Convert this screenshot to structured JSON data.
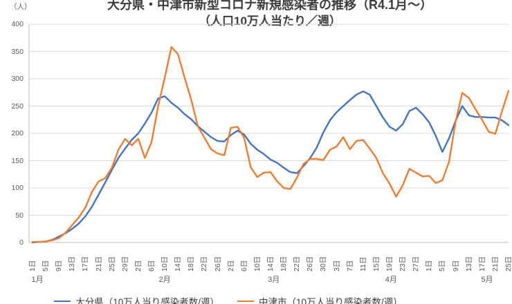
{
  "header": {
    "y_axis_unit": "（人）",
    "title_line1": "大分県・中津市新型コロナ新規感染者の推移（R4.1月～）",
    "title_line2": "（人口10万人当たり／週）"
  },
  "chart_data": {
    "type": "line",
    "title": "大分県・中津市新型コロナ新規感染者の推移（R4.1月～）",
    "subtitle": "（人口10万人当たり／週）",
    "ylabel": "（人）",
    "ylim": [
      0,
      400
    ],
    "y_ticks": [
      0,
      50,
      100,
      150,
      200,
      250,
      300,
      350,
      400
    ],
    "grid": "horizontal",
    "legend_position": "bottom",
    "x_start": "1月1日",
    "x_end": "5月25日",
    "sample_interval_days": 2,
    "x_tick_interval_days": 4,
    "x_tick_labels": [
      "1日",
      "5日",
      "9日",
      "13日",
      "17日",
      "21日",
      "25日",
      "29日",
      "2日",
      "6日",
      "10日",
      "14日",
      "18日",
      "22日",
      "26日",
      "2日",
      "6日",
      "10日",
      "14日",
      "18日",
      "22日",
      "26日",
      "30日",
      "3日",
      "7日",
      "11日",
      "15日",
      "19日",
      "23日",
      "27日",
      "1日",
      "5日",
      "9日",
      "13日",
      "17日",
      "21日",
      "25日"
    ],
    "months": [
      {
        "label": "1月",
        "day": 2
      },
      {
        "label": "2月",
        "day": 40.5
      },
      {
        "label": "3月",
        "day": 73.5
      },
      {
        "label": "4月",
        "day": 109
      },
      {
        "label": "5月",
        "day": 138
      }
    ],
    "series": [
      {
        "name": "大分県（10万人当り感染者数/週）",
        "color": "#4472C4",
        "values": [
          0,
          1,
          2,
          5,
          11,
          17,
          25,
          35,
          48,
          66,
          88,
          110,
          133,
          155,
          172,
          188,
          200,
          218,
          238,
          264,
          268,
          256,
          247,
          235,
          226,
          213,
          203,
          193,
          186,
          185,
          197,
          205,
          198,
          181,
          170,
          162,
          152,
          146,
          137,
          129,
          127,
          140,
          155,
          174,
          202,
          224,
          239,
          250,
          261,
          271,
          277,
          271,
          250,
          229,
          212,
          205,
          217,
          241,
          247,
          235,
          220,
          195,
          166,
          191,
          223,
          250,
          233,
          230,
          230,
          229,
          229,
          224,
          215
        ]
      },
      {
        "name": "中津市（10万人当り感染者数/週）",
        "color": "#ED7D31",
        "values": [
          1,
          1,
          2,
          4,
          8,
          18,
          32,
          46,
          64,
          93,
          112,
          118,
          137,
          170,
          190,
          178,
          190,
          155,
          184,
          250,
          302,
          358,
          345,
          302,
          262,
          213,
          192,
          171,
          163,
          160,
          210,
          212,
          192,
          138,
          120,
          128,
          129,
          112,
          100,
          98,
          119,
          144,
          153,
          153,
          151,
          170,
          176,
          193,
          171,
          186,
          188,
          172,
          155,
          127,
          108,
          84,
          105,
          135,
          128,
          121,
          122,
          109,
          114,
          148,
          222,
          274,
          265,
          244,
          225,
          203,
          199,
          240,
          278
        ]
      }
    ]
  },
  "style": {
    "background": "#FFFFFF",
    "grid_color": "#D9D9D9",
    "axis_color": "#BFBFBF",
    "tick_label_color": "#595959",
    "title_color": "#3B3B3B"
  }
}
